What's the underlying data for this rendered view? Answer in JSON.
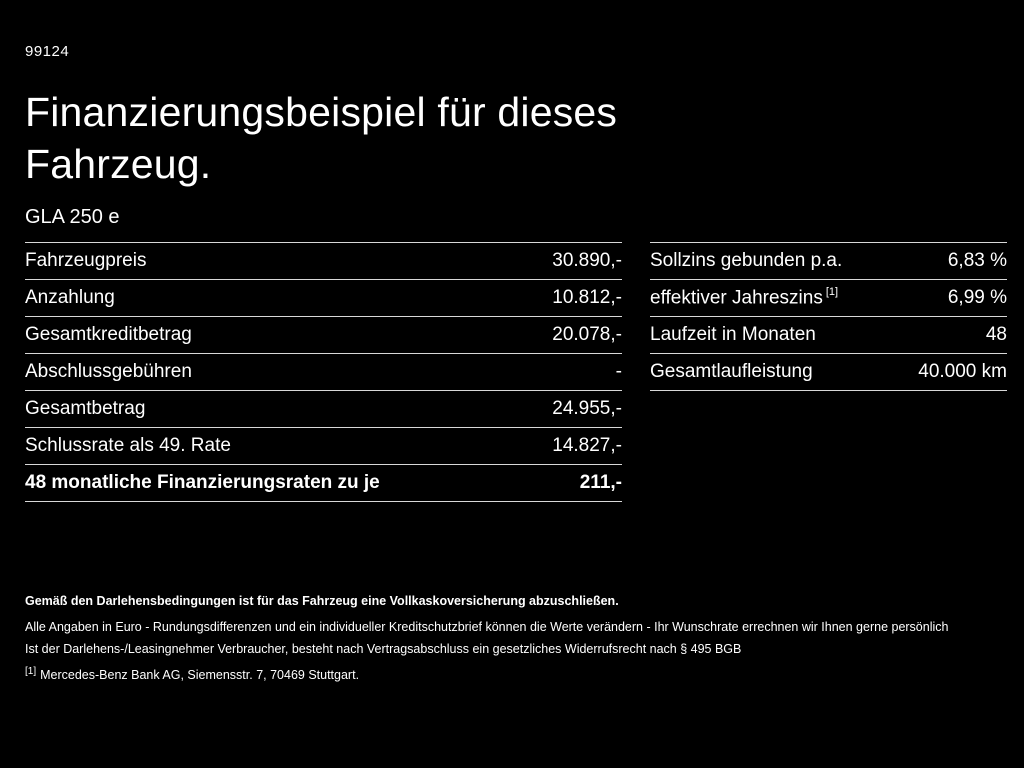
{
  "page": {
    "code": "99124",
    "title_line1": "Finanzierungsbeispiel für dieses",
    "title_line2": "Fahrzeug.",
    "model": "GLA 250 e"
  },
  "left_table": {
    "rows": [
      {
        "label": "Fahrzeugpreis",
        "value": "30.890,-"
      },
      {
        "label": "Anzahlung",
        "value": "10.812,-"
      },
      {
        "label": "Gesamtkreditbetrag",
        "value": "20.078,-"
      },
      {
        "label": "Abschlussgebühren",
        "value": "-"
      },
      {
        "label": "Gesamtbetrag",
        "value": "24.955,-"
      },
      {
        "label": "Schlussrate als 49. Rate",
        "value": "14.827,-"
      },
      {
        "label": "48 monatliche Finanzierungsraten zu je",
        "value": "211,-"
      }
    ]
  },
  "right_table": {
    "rows": [
      {
        "label": "Sollzins gebunden p.a.",
        "value": "6,83 %"
      },
      {
        "label": "effektiver Jahreszins",
        "sup": "[1]",
        "value": "6,99 %"
      },
      {
        "label": "Laufzeit in Monaten",
        "value": "48"
      },
      {
        "label": "Gesamtlaufleistung",
        "value": "40.000 km"
      }
    ]
  },
  "footnotes": {
    "bold_note": "Gemäß den Darlehensbedingungen ist für das Fahrzeug eine Vollkaskoversicherung abzuschließen.",
    "note1": "Alle Angaben in Euro - Rundungsdifferenzen und ein individueller Kreditschutzbrief können die Werte verändern - Ihr Wunschrate errechnen wir Ihnen gerne persönlich",
    "note2": "Ist der Darlehens-/Leasingnehmer Verbraucher, besteht nach Vertragsabschluss ein gesetzliches Widerrufsrecht nach § 495 BGB",
    "ref_marker": "[1]",
    "ref_text": "Mercedes-Benz Bank AG, Siemensstr. 7, 70469 Stuttgart."
  },
  "colors": {
    "background": "#000000",
    "text": "#ffffff",
    "divider": "#d8d8d8"
  }
}
